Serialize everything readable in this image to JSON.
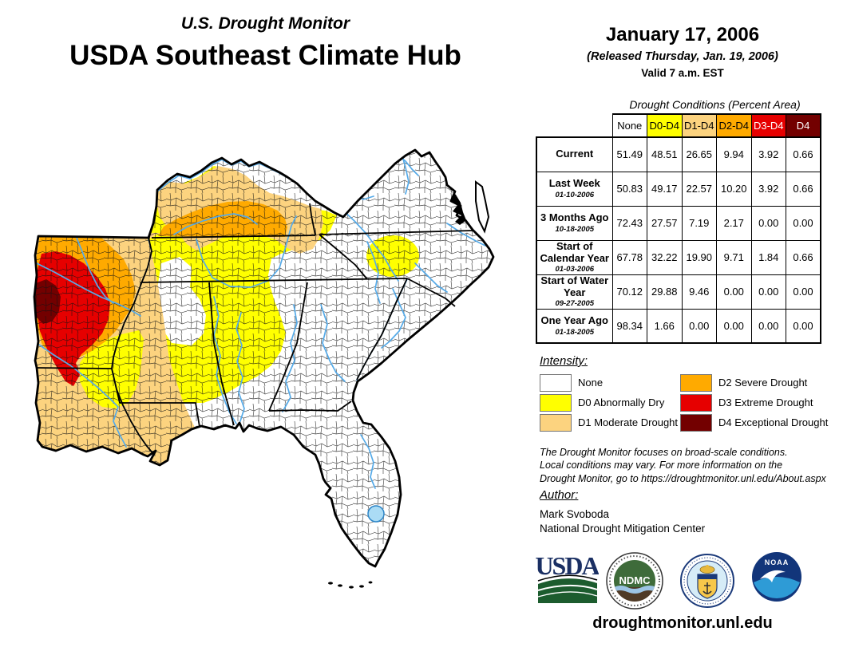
{
  "header": {
    "kicker": "U.S. Drought Monitor",
    "title": "USDA Southeast Climate Hub"
  },
  "date_block": {
    "date": "January 17, 2006",
    "released": "(Released Thursday, Jan. 19, 2006)",
    "valid": "Valid 7 a.m. EST"
  },
  "table": {
    "title": "Drought Conditions (Percent Area)",
    "columns": [
      "None",
      "D0-D4",
      "D1-D4",
      "D2-D4",
      "D3-D4",
      "D4"
    ],
    "column_keys": [
      "none",
      "d0",
      "d1",
      "d2",
      "d3",
      "d4"
    ],
    "rows": [
      {
        "label": "Current",
        "date": "",
        "values": [
          "51.49",
          "48.51",
          "26.65",
          "9.94",
          "3.92",
          "0.66"
        ]
      },
      {
        "label": "Last Week",
        "date": "01-10-2006",
        "values": [
          "50.83",
          "49.17",
          "22.57",
          "10.20",
          "3.92",
          "0.66"
        ]
      },
      {
        "label": "3 Months Ago",
        "date": "10-18-2005",
        "values": [
          "72.43",
          "27.57",
          "7.19",
          "2.17",
          "0.00",
          "0.00"
        ]
      },
      {
        "label": "Start of Calendar Year",
        "date": "01-03-2006",
        "values": [
          "67.78",
          "32.22",
          "19.90",
          "9.71",
          "1.84",
          "0.66"
        ]
      },
      {
        "label": "Start of Water Year",
        "date": "09-27-2005",
        "values": [
          "70.12",
          "29.88",
          "9.46",
          "0.00",
          "0.00",
          "0.00"
        ]
      },
      {
        "label": "One Year Ago",
        "date": "01-18-2005",
        "values": [
          "98.34",
          "1.66",
          "0.00",
          "0.00",
          "0.00",
          "0.00"
        ]
      }
    ]
  },
  "legend": {
    "heading": "Intensity:",
    "items": [
      {
        "key": "none",
        "label": "None"
      },
      {
        "key": "d0",
        "label": "D0 Abnormally Dry"
      },
      {
        "key": "d1",
        "label": "D1 Moderate Drought"
      },
      {
        "key": "d2",
        "label": "D2 Severe Drought"
      },
      {
        "key": "d3",
        "label": "D3 Extreme Drought"
      },
      {
        "key": "d4",
        "label": "D4 Exceptional Drought"
      }
    ]
  },
  "disclaimer": {
    "lines": [
      "The Drought Monitor focuses on broad-scale conditions.",
      "Local conditions may vary. For more information on the",
      "Drought Monitor, go to https://droughtmonitor.unl.edu/About.aspx"
    ]
  },
  "author": {
    "heading": "Author:",
    "name": "Mark Svoboda",
    "org": "National Drought Mitigation Center"
  },
  "logos": {
    "usda": "USDA",
    "ndmc": "NDMC",
    "noaa": "NOAA"
  },
  "footer": {
    "url": "droughtmonitor.unl.edu"
  },
  "map": {
    "palette": {
      "none": "#FFFFFF",
      "d0": "#FFFF00",
      "d1": "#FCD37F",
      "d2": "#FFAA00",
      "d3": "#E60000",
      "d4": "#730000"
    },
    "water_color": "#55AAE8"
  }
}
